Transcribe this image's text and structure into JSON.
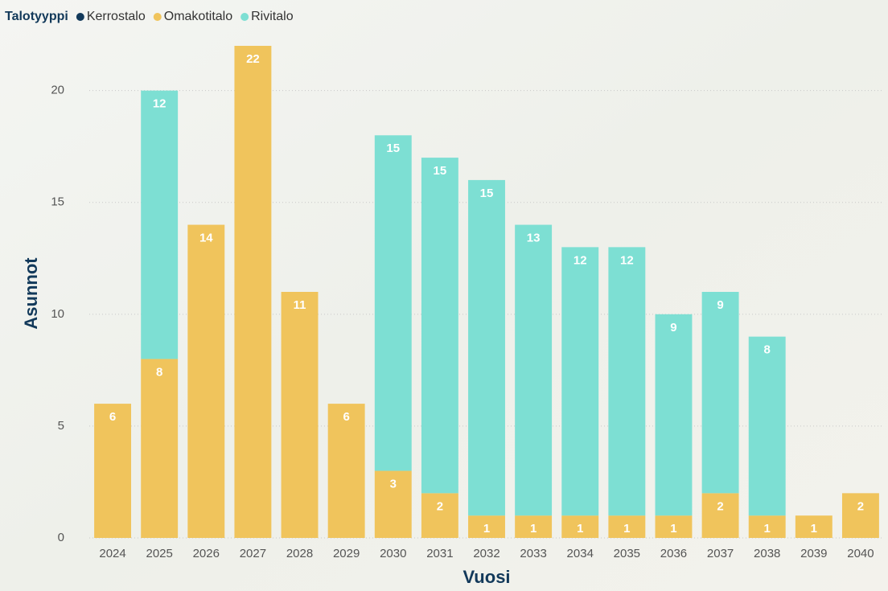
{
  "chart_data": {
    "type": "stacked_bar",
    "legend_title": "Talotyyppi",
    "x_label": "Vuosi",
    "y_label": "Asunnot",
    "categories": [
      "2024",
      "2025",
      "2026",
      "2027",
      "2028",
      "2029",
      "2030",
      "2031",
      "2032",
      "2033",
      "2034",
      "2035",
      "2036",
      "2037",
      "2038",
      "2039",
      "2040"
    ],
    "series": [
      {
        "name": "Kerrostalo",
        "color": "#12395a",
        "values": [
          null,
          null,
          null,
          null,
          null,
          null,
          null,
          null,
          null,
          null,
          null,
          null,
          null,
          null,
          null,
          null,
          null
        ]
      },
      {
        "name": "Omakotitalo",
        "color": "#f0c45c",
        "values": [
          6,
          8,
          14,
          22,
          11,
          6,
          3,
          2,
          1,
          1,
          1,
          1,
          1,
          2,
          1,
          1,
          2
        ]
      },
      {
        "name": "Rivitalo",
        "color": "#7ddfd3",
        "values": [
          null,
          12,
          null,
          null,
          null,
          null,
          15,
          15,
          15,
          13,
          12,
          12,
          9,
          9,
          8,
          null,
          null
        ]
      }
    ],
    "ylim": [
      0,
      22
    ],
    "yticks": [
      0,
      5,
      10,
      15,
      20
    ],
    "grid": true,
    "legend": "top-left"
  }
}
